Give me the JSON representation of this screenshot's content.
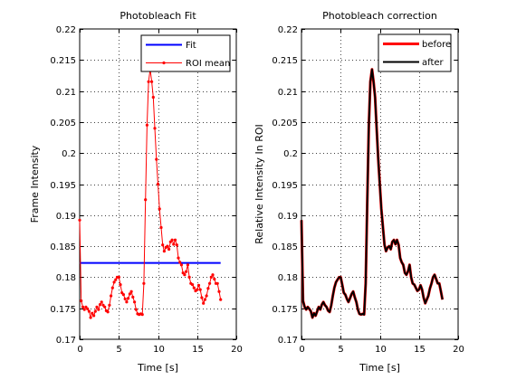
{
  "chart_data": [
    {
      "type": "line",
      "title": "Photobleach Fit",
      "xlabel": "Time [s]",
      "ylabel": "Frame Intensity",
      "xlim": [
        0,
        20
      ],
      "ylim": [
        0.17,
        0.22
      ],
      "xticks": [
        "0",
        "5",
        "10",
        "15",
        "20"
      ],
      "yticks": [
        "0.17",
        "0.175",
        "0.18",
        "0.185",
        "0.19",
        "0.195",
        "0.2",
        "0.205",
        "0.21",
        "0.215",
        "0.22"
      ],
      "grid": true,
      "legend_position": "top-right",
      "series": [
        {
          "name": "Fit",
          "color": "#0000ff",
          "marker": "none",
          "x": [
            0,
            18
          ],
          "y": [
            0.1823,
            0.1823
          ]
        },
        {
          "name": "ROI mean",
          "color": "#ff0000",
          "marker": "dot",
          "x": [
            0,
            0.2,
            0.4,
            0.6,
            0.8,
            1.0,
            1.2,
            1.4,
            1.6,
            1.8,
            2.0,
            2.2,
            2.4,
            2.6,
            2.8,
            3.0,
            3.2,
            3.4,
            3.6,
            3.8,
            4.0,
            4.2,
            4.4,
            4.6,
            4.8,
            5.0,
            5.2,
            5.4,
            5.6,
            5.8,
            6.0,
            6.2,
            6.4,
            6.6,
            6.8,
            7.0,
            7.2,
            7.4,
            7.6,
            7.8,
            8.0,
            8.2,
            8.4,
            8.6,
            8.8,
            9.0,
            9.2,
            9.4,
            9.6,
            9.8,
            10.0,
            10.2,
            10.4,
            10.6,
            10.8,
            11.0,
            11.2,
            11.4,
            11.6,
            11.8,
            12.0,
            12.2,
            12.4,
            12.6,
            12.8,
            13.0,
            13.2,
            13.4,
            13.6,
            13.8,
            14.0,
            14.2,
            14.4,
            14.6,
            14.8,
            15.0,
            15.2,
            15.4,
            15.6,
            15.8,
            16.0,
            16.2,
            16.4,
            16.6,
            16.8,
            17.0,
            17.2,
            17.4,
            17.6,
            17.8,
            18.0
          ],
          "y": [
            0.1892,
            0.1762,
            0.1752,
            0.1748,
            0.1752,
            0.1749,
            0.1745,
            0.1735,
            0.1742,
            0.1738,
            0.1745,
            0.1752,
            0.1748,
            0.1756,
            0.176,
            0.1755,
            0.1752,
            0.1746,
            0.1744,
            0.1755,
            0.177,
            0.1783,
            0.1792,
            0.1796,
            0.18,
            0.18,
            0.1788,
            0.1775,
            0.1772,
            0.1765,
            0.176,
            0.1766,
            0.1773,
            0.1777,
            0.1768,
            0.176,
            0.1748,
            0.1741,
            0.174,
            0.1741,
            0.174,
            0.179,
            0.1925,
            0.2045,
            0.2115,
            0.2135,
            0.2115,
            0.209,
            0.204,
            0.199,
            0.195,
            0.191,
            0.188,
            0.1852,
            0.1842,
            0.1848,
            0.185,
            0.1845,
            0.1857,
            0.186,
            0.1853,
            0.186,
            0.1852,
            0.1831,
            0.1824,
            0.182,
            0.1807,
            0.1804,
            0.1809,
            0.182,
            0.18,
            0.179,
            0.1788,
            0.1783,
            0.1778,
            0.178,
            0.1787,
            0.178,
            0.1767,
            0.1758,
            0.1764,
            0.177,
            0.1782,
            0.179,
            0.18,
            0.1804,
            0.1797,
            0.179,
            0.179,
            0.1777,
            0.1764
          ]
        }
      ]
    },
    {
      "type": "line",
      "title": "Photobleach correction",
      "xlabel": "Time [s]",
      "ylabel": "Relative Intensity In ROI",
      "xlim": [
        0,
        20
      ],
      "ylim": [
        0.17,
        0.22
      ],
      "xticks": [
        "0",
        "5",
        "10",
        "15",
        "20"
      ],
      "yticks": [
        "0.17",
        "0.175",
        "0.18",
        "0.185",
        "0.19",
        "0.195",
        "0.2",
        "0.205",
        "0.21",
        "0.215",
        "0.22"
      ],
      "grid": true,
      "legend_position": "top-right",
      "series": [
        {
          "name": "before",
          "color": "#ff0000",
          "x": [
            0,
            0.2,
            0.4,
            0.6,
            0.8,
            1.0,
            1.2,
            1.4,
            1.6,
            1.8,
            2.0,
            2.2,
            2.4,
            2.6,
            2.8,
            3.0,
            3.2,
            3.4,
            3.6,
            3.8,
            4.0,
            4.2,
            4.4,
            4.6,
            4.8,
            5.0,
            5.2,
            5.4,
            5.6,
            5.8,
            6.0,
            6.2,
            6.4,
            6.6,
            6.8,
            7.0,
            7.2,
            7.4,
            7.6,
            7.8,
            8.0,
            8.2,
            8.4,
            8.6,
            8.8,
            9.0,
            9.2,
            9.4,
            9.6,
            9.8,
            10.0,
            10.2,
            10.4,
            10.6,
            10.8,
            11.0,
            11.2,
            11.4,
            11.6,
            11.8,
            12.0,
            12.2,
            12.4,
            12.6,
            12.8,
            13.0,
            13.2,
            13.4,
            13.6,
            13.8,
            14.0,
            14.2,
            14.4,
            14.6,
            14.8,
            15.0,
            15.2,
            15.4,
            15.6,
            15.8,
            16.0,
            16.2,
            16.4,
            16.6,
            16.8,
            17.0,
            17.2,
            17.4,
            17.6,
            17.8,
            18.0
          ],
          "y": [
            0.1892,
            0.1762,
            0.1752,
            0.1748,
            0.1752,
            0.1749,
            0.1745,
            0.1735,
            0.1742,
            0.1738,
            0.1745,
            0.1752,
            0.1748,
            0.1756,
            0.176,
            0.1755,
            0.1752,
            0.1746,
            0.1744,
            0.1755,
            0.177,
            0.1783,
            0.1792,
            0.1796,
            0.18,
            0.18,
            0.1788,
            0.1775,
            0.1772,
            0.1765,
            0.176,
            0.1766,
            0.1773,
            0.1777,
            0.1768,
            0.176,
            0.1748,
            0.1741,
            0.174,
            0.1741,
            0.174,
            0.179,
            0.1925,
            0.2045,
            0.2115,
            0.2135,
            0.2115,
            0.209,
            0.204,
            0.199,
            0.195,
            0.191,
            0.188,
            0.1852,
            0.1842,
            0.1848,
            0.185,
            0.1845,
            0.1857,
            0.186,
            0.1853,
            0.186,
            0.1852,
            0.1831,
            0.1824,
            0.182,
            0.1807,
            0.1804,
            0.1809,
            0.182,
            0.18,
            0.179,
            0.1788,
            0.1783,
            0.1778,
            0.178,
            0.1787,
            0.178,
            0.1767,
            0.1758,
            0.1764,
            0.177,
            0.1782,
            0.179,
            0.18,
            0.1804,
            0.1797,
            0.179,
            0.179,
            0.1777,
            0.1764
          ]
        },
        {
          "name": "after",
          "color": "#000000",
          "x": [
            0,
            0.2,
            0.4,
            0.6,
            0.8,
            1.0,
            1.2,
            1.4,
            1.6,
            1.8,
            2.0,
            2.2,
            2.4,
            2.6,
            2.8,
            3.0,
            3.2,
            3.4,
            3.6,
            3.8,
            4.0,
            4.2,
            4.4,
            4.6,
            4.8,
            5.0,
            5.2,
            5.4,
            5.6,
            5.8,
            6.0,
            6.2,
            6.4,
            6.6,
            6.8,
            7.0,
            7.2,
            7.4,
            7.6,
            7.8,
            8.0,
            8.2,
            8.4,
            8.6,
            8.8,
            9.0,
            9.2,
            9.4,
            9.6,
            9.8,
            10.0,
            10.2,
            10.4,
            10.6,
            10.8,
            11.0,
            11.2,
            11.4,
            11.6,
            11.8,
            12.0,
            12.2,
            12.4,
            12.6,
            12.8,
            13.0,
            13.2,
            13.4,
            13.6,
            13.8,
            14.0,
            14.2,
            14.4,
            14.6,
            14.8,
            15.0,
            15.2,
            15.4,
            15.6,
            15.8,
            16.0,
            16.2,
            16.4,
            16.6,
            16.8,
            17.0,
            17.2,
            17.4,
            17.6,
            17.8,
            18.0
          ],
          "y": [
            0.1892,
            0.1762,
            0.1752,
            0.1748,
            0.1752,
            0.1749,
            0.1745,
            0.1735,
            0.1742,
            0.1738,
            0.1745,
            0.1752,
            0.1748,
            0.1756,
            0.176,
            0.1755,
            0.1752,
            0.1746,
            0.1744,
            0.1755,
            0.177,
            0.1783,
            0.1792,
            0.1796,
            0.18,
            0.18,
            0.1788,
            0.1775,
            0.1772,
            0.1765,
            0.176,
            0.1766,
            0.1773,
            0.1777,
            0.1768,
            0.176,
            0.1748,
            0.1741,
            0.174,
            0.1741,
            0.174,
            0.179,
            0.1925,
            0.2045,
            0.2115,
            0.2135,
            0.2115,
            0.209,
            0.204,
            0.199,
            0.195,
            0.191,
            0.188,
            0.1852,
            0.1842,
            0.1848,
            0.185,
            0.1845,
            0.1857,
            0.186,
            0.1853,
            0.186,
            0.1852,
            0.1831,
            0.1824,
            0.182,
            0.1807,
            0.1804,
            0.1809,
            0.182,
            0.18,
            0.179,
            0.1788,
            0.1783,
            0.1778,
            0.178,
            0.1787,
            0.178,
            0.1767,
            0.1758,
            0.1764,
            0.177,
            0.1782,
            0.179,
            0.18,
            0.1804,
            0.1797,
            0.179,
            0.179,
            0.1777,
            0.1764
          ]
        }
      ]
    }
  ]
}
